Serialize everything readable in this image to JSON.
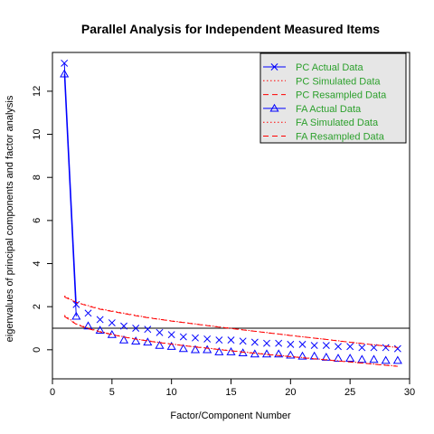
{
  "chart_data": {
    "type": "line",
    "title": "Parallel Analysis for Independent Measured Items",
    "xlabel": "Factor/Component Number",
    "ylabel": "eigenvalues of principal components and factor analysis",
    "xlim": [
      0,
      30
    ],
    "ylim": [
      -1.35,
      13.8
    ],
    "xticks": [
      0,
      5,
      10,
      15,
      20,
      25,
      30
    ],
    "yticks": [
      0,
      2,
      4,
      6,
      8,
      10,
      12
    ],
    "reference_line": 1,
    "grid": false,
    "legend_position": "top-right",
    "x": [
      1,
      2,
      3,
      4,
      5,
      6,
      7,
      8,
      9,
      10,
      11,
      12,
      13,
      14,
      15,
      16,
      17,
      18,
      19,
      20,
      21,
      22,
      23,
      24,
      25,
      26,
      27,
      28,
      29
    ],
    "series": [
      {
        "name": "PC  Actual Data",
        "color": "#0000ff",
        "line": "solid",
        "marker": "x",
        "values": [
          13.3,
          2.1,
          1.7,
          1.4,
          1.25,
          1.1,
          1.0,
          0.95,
          0.8,
          0.7,
          0.6,
          0.55,
          0.5,
          0.45,
          0.45,
          0.4,
          0.35,
          0.3,
          0.3,
          0.25,
          0.25,
          0.2,
          0.2,
          0.15,
          0.15,
          0.1,
          0.1,
          0.1,
          0.05
        ]
      },
      {
        "name": "PC  Simulated Data",
        "color": "#ff0000",
        "line": "dotted",
        "marker": "",
        "values": [
          2.5,
          2.2,
          2.05,
          1.9,
          1.8,
          1.7,
          1.6,
          1.5,
          1.42,
          1.34,
          1.27,
          1.2,
          1.13,
          1.06,
          1.0,
          0.93,
          0.86,
          0.8,
          0.73,
          0.67,
          0.6,
          0.54,
          0.48,
          0.42,
          0.35,
          0.29,
          0.23,
          0.17,
          0.1
        ]
      },
      {
        "name": "PC  Resampled Data",
        "color": "#ff0000",
        "line": "dashed",
        "marker": "",
        "values": [
          2.45,
          2.2,
          2.03,
          1.88,
          1.78,
          1.68,
          1.58,
          1.49,
          1.41,
          1.33,
          1.26,
          1.19,
          1.12,
          1.05,
          0.99,
          0.92,
          0.86,
          0.79,
          0.73,
          0.66,
          0.6,
          0.54,
          0.48,
          0.41,
          0.35,
          0.29,
          0.23,
          0.17,
          0.11
        ]
      },
      {
        "name": "FA  Actual Data",
        "color": "#0000ff",
        "line": "solid",
        "marker": "triangle",
        "values": [
          12.8,
          1.55,
          1.1,
          0.9,
          0.7,
          0.45,
          0.4,
          0.35,
          0.2,
          0.15,
          0.05,
          0.0,
          0.0,
          -0.1,
          -0.1,
          -0.15,
          -0.2,
          -0.2,
          -0.2,
          -0.25,
          -0.3,
          -0.3,
          -0.35,
          -0.4,
          -0.4,
          -0.45,
          -0.45,
          -0.5,
          -0.5
        ]
      },
      {
        "name": "FA  Simulated Data",
        "color": "#ff0000",
        "line": "dotted",
        "marker": "",
        "values": [
          1.6,
          1.2,
          1.0,
          0.85,
          0.72,
          0.6,
          0.5,
          0.42,
          0.34,
          0.27,
          0.2,
          0.14,
          0.08,
          0.02,
          -0.04,
          -0.1,
          -0.15,
          -0.21,
          -0.26,
          -0.31,
          -0.36,
          -0.41,
          -0.46,
          -0.51,
          -0.56,
          -0.61,
          -0.66,
          -0.71,
          -0.76
        ]
      },
      {
        "name": "FA  Resampled Data",
        "color": "#ff0000",
        "line": "dashed",
        "marker": "",
        "values": [
          1.55,
          1.18,
          0.98,
          0.83,
          0.7,
          0.59,
          0.49,
          0.41,
          0.33,
          0.26,
          0.19,
          0.13,
          0.07,
          0.01,
          -0.05,
          -0.11,
          -0.16,
          -0.22,
          -0.27,
          -0.32,
          -0.37,
          -0.42,
          -0.47,
          -0.52,
          -0.57,
          -0.62,
          -0.67,
          -0.72,
          -0.77
        ]
      }
    ]
  }
}
